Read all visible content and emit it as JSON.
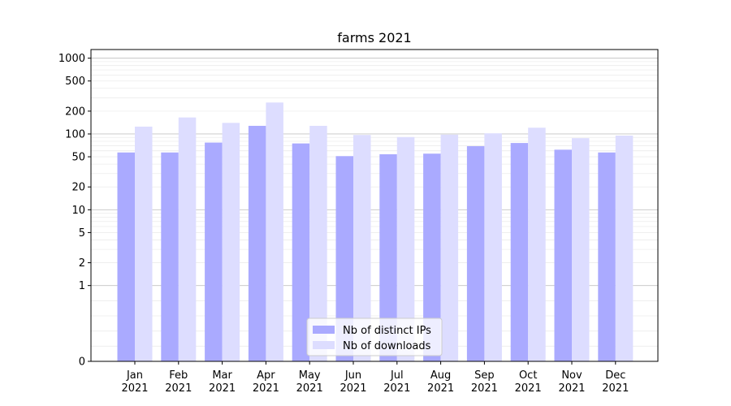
{
  "chart_data": {
    "type": "bar",
    "title": "farms 2021",
    "xlabel": "",
    "ylabel": "",
    "yscale": "symlog",
    "ylim": [
      0,
      1300
    ],
    "categories": [
      "Jan 2021",
      "Feb 2021",
      "Mar 2021",
      "Apr 2021",
      "May 2021",
      "Jun 2021",
      "Jul 2021",
      "Aug 2021",
      "Sep 2021",
      "Oct 2021",
      "Nov 2021",
      "Dec 2021"
    ],
    "x_tick_labels": [
      {
        "month": "Jan",
        "year": "2021"
      },
      {
        "month": "Feb",
        "year": "2021"
      },
      {
        "month": "Mar",
        "year": "2021"
      },
      {
        "month": "Apr",
        "year": "2021"
      },
      {
        "month": "May",
        "year": "2021"
      },
      {
        "month": "Jun",
        "year": "2021"
      },
      {
        "month": "Jul",
        "year": "2021"
      },
      {
        "month": "Aug",
        "year": "2021"
      },
      {
        "month": "Sep",
        "year": "2021"
      },
      {
        "month": "Oct",
        "year": "2021"
      },
      {
        "month": "Nov",
        "year": "2021"
      },
      {
        "month": "Dec",
        "year": "2021"
      }
    ],
    "y_ticks": [
      {
        "value": 0,
        "label": "0"
      },
      {
        "value": 1,
        "label": "1"
      },
      {
        "value": 2,
        "label": "2"
      },
      {
        "value": 5,
        "label": "5"
      },
      {
        "value": 10,
        "label": "10"
      },
      {
        "value": 20,
        "label": "20"
      },
      {
        "value": 50,
        "label": "50"
      },
      {
        "value": 100,
        "label": "100"
      },
      {
        "value": 200,
        "label": "200"
      },
      {
        "value": 500,
        "label": "500"
      },
      {
        "value": 1000,
        "label": "1000"
      }
    ],
    "series": [
      {
        "name": "Nb of distinct IPs",
        "color": "#aaaaff",
        "values": [
          57,
          57,
          77,
          128,
          75,
          51,
          54,
          55,
          69,
          76,
          62,
          57
        ]
      },
      {
        "name": "Nb of downloads",
        "color": "#ddddff",
        "values": [
          125,
          165,
          140,
          260,
          128,
          97,
          91,
          98,
          102,
          121,
          88,
          95
        ]
      }
    ],
    "grid": true,
    "legend": {
      "placement": "lower-center"
    }
  }
}
